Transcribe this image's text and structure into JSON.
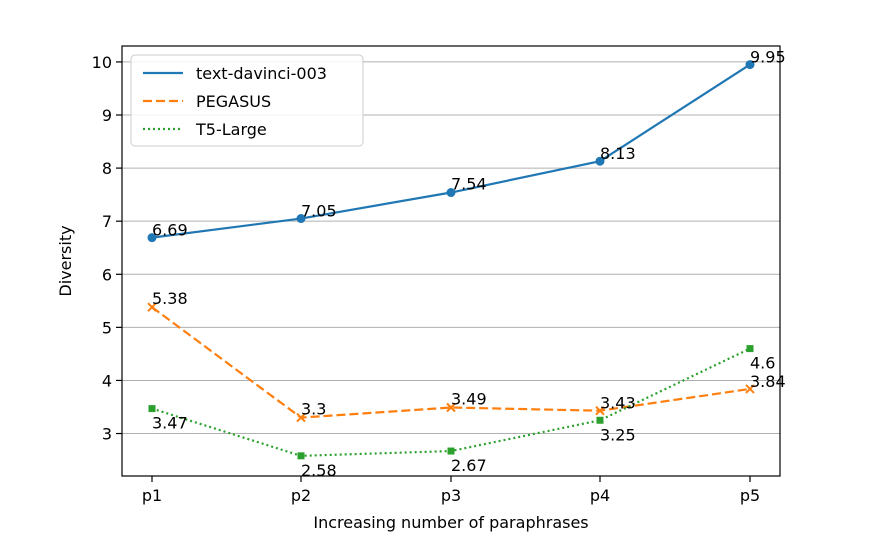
{
  "chart_data": {
    "type": "line",
    "title": "",
    "xlabel": "Increasing number of paraphrases",
    "ylabel": "Diversity",
    "categories": [
      "p1",
      "p2",
      "p3",
      "p4",
      "p5"
    ],
    "ylim": [
      2.2,
      10.3
    ],
    "yticks": [
      3,
      4,
      5,
      6,
      7,
      8,
      9,
      10
    ],
    "grid": "horizontal",
    "legend_position": "top-left",
    "series": [
      {
        "name": "text-davinci-003",
        "values": [
          6.69,
          7.05,
          7.54,
          8.13,
          9.95
        ],
        "labels": [
          "6.69",
          "7.05",
          "7.54",
          "8.13",
          "9.95"
        ],
        "color": "#1f77b4",
        "line_style": "solid",
        "marker": "circle"
      },
      {
        "name": "PEGASUS",
        "values": [
          5.38,
          3.3,
          3.49,
          3.43,
          3.84
        ],
        "labels": [
          "5.38",
          "3.3",
          "3.49",
          "3.43",
          "3.84"
        ],
        "color": "#ff7f0e",
        "line_style": "dashed",
        "marker": "x"
      },
      {
        "name": "T5-Large",
        "values": [
          3.47,
          2.58,
          2.67,
          3.25,
          4.6
        ],
        "labels": [
          "3.47",
          "2.58",
          "2.67",
          "3.25",
          "4.6"
        ],
        "color": "#2ca02c",
        "line_style": "dotted",
        "marker": "square"
      }
    ]
  }
}
